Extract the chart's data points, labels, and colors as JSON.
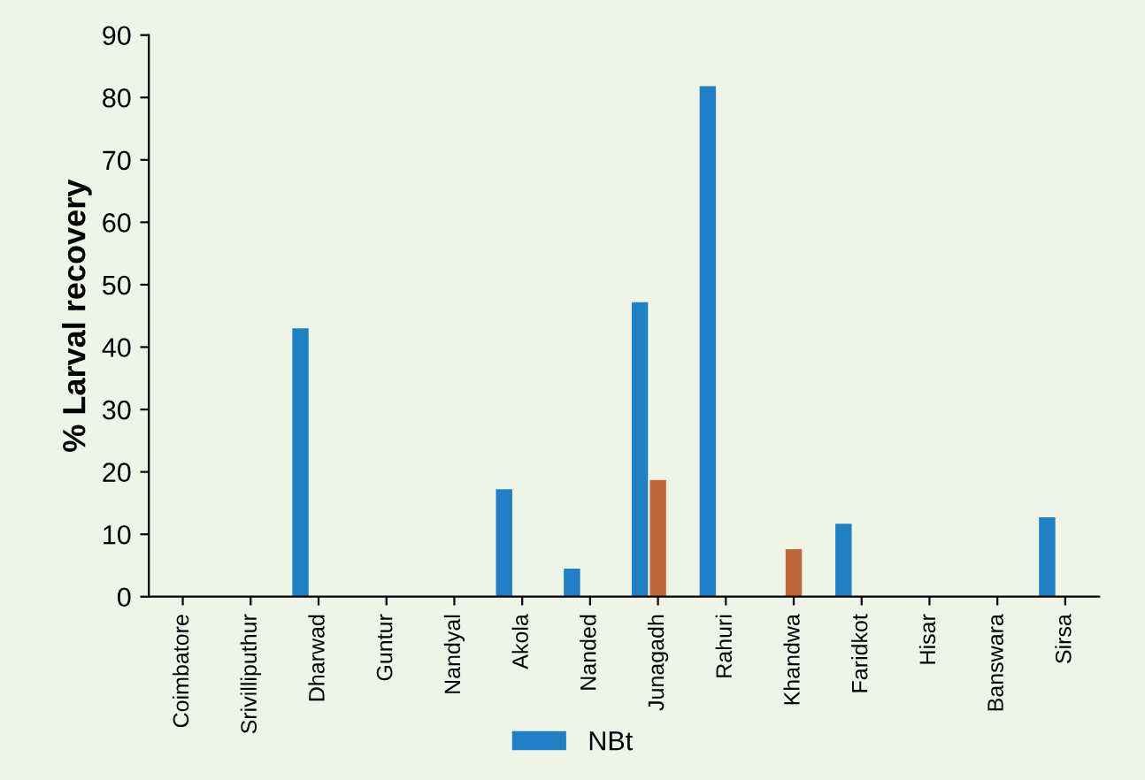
{
  "chart_data": {
    "type": "bar",
    "ylabel": "% Larval recovery",
    "categories": [
      "Coimbatore",
      "Srivilliputhur",
      "Dharwad",
      "Guntur",
      "Nandyal",
      "Akola",
      "Nanded",
      "Junagadh",
      "Rahuri",
      "Khandwa",
      "Faridkot",
      "Hisar",
      "Banswara",
      "Sirsa"
    ],
    "series": [
      {
        "name": "NBt",
        "color": "#1f80c6",
        "values": [
          0,
          0,
          43,
          0,
          0,
          17.2,
          4.5,
          47.2,
          81.8,
          0,
          11.7,
          0,
          0,
          12.7
        ]
      },
      {
        "color": "#c0683a",
        "values": [
          0,
          0,
          0,
          0,
          0,
          0,
          0,
          18.7,
          0,
          7.6,
          0,
          0,
          0,
          0
        ]
      },
      {
        "color": "#8cc63f",
        "values": [
          0,
          0,
          0,
          0,
          0,
          0,
          0,
          0,
          0,
          0,
          0,
          0,
          0,
          0
        ]
      }
    ],
    "ylim": [
      0,
      90
    ],
    "yticks": [
      0,
      10,
      20,
      30,
      40,
      50,
      60,
      70,
      80,
      90
    ],
    "grid": false,
    "legend": "bottom"
  }
}
